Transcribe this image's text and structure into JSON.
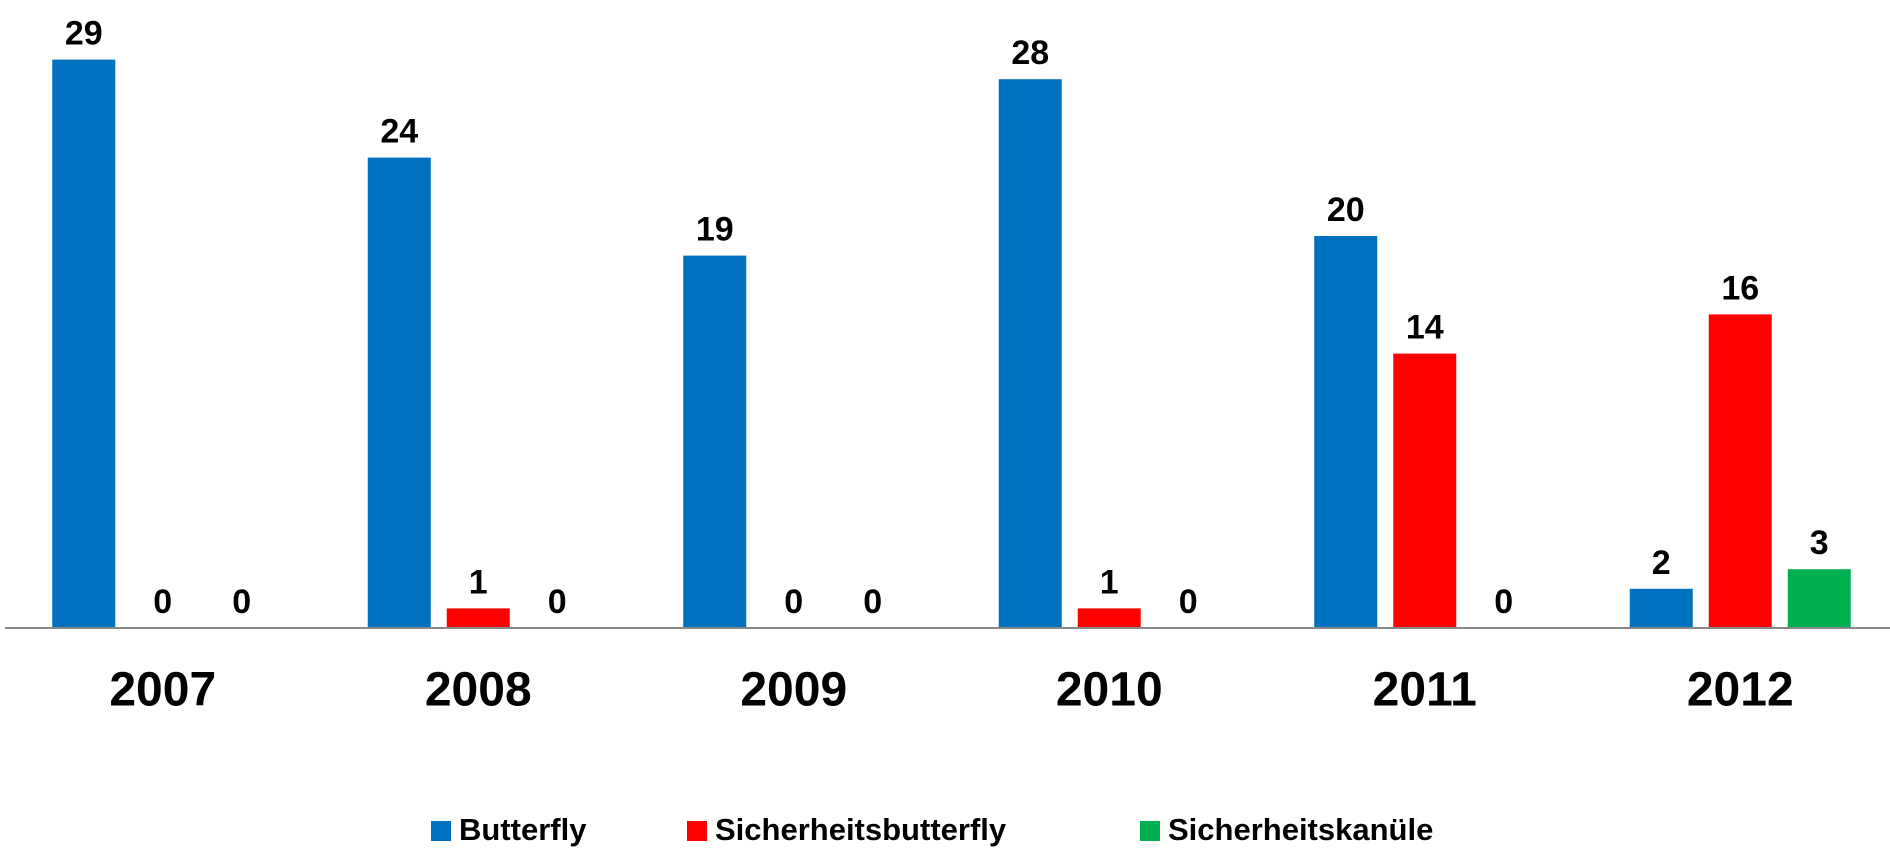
{
  "chart_data": {
    "type": "bar",
    "categories": [
      "2007",
      "2008",
      "2009",
      "2010",
      "2011",
      "2012"
    ],
    "series": [
      {
        "name": "Butterfly",
        "color": "#0070c0",
        "values": [
          29,
          24,
          19,
          28,
          20,
          2
        ]
      },
      {
        "name": "Sicherheitsbutterfly",
        "color": "#ff0000",
        "values": [
          0,
          1,
          0,
          1,
          14,
          16
        ]
      },
      {
        "name": "Sicherheitskanüle",
        "color": "#00b050",
        "values": [
          0,
          0,
          0,
          0,
          0,
          3
        ]
      }
    ],
    "ylim": [
      0,
      30
    ],
    "legend": "bottom"
  }
}
